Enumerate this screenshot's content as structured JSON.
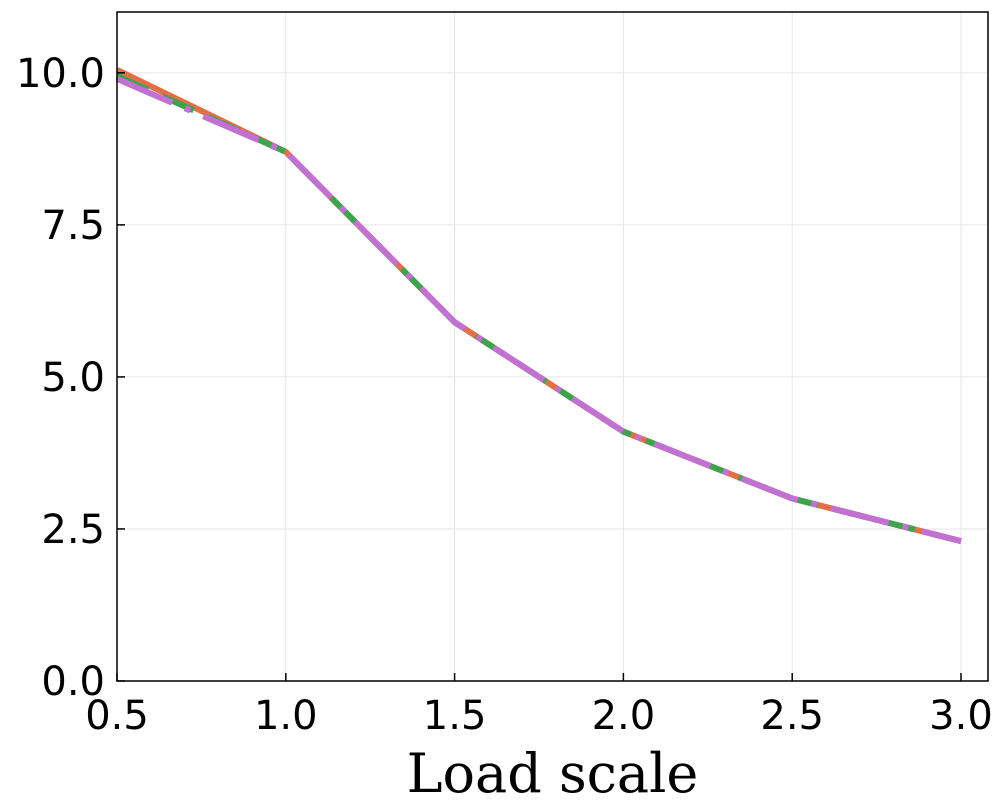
{
  "chart_data": {
    "type": "line",
    "title": "",
    "xlabel": "Load scale",
    "ylabel": "",
    "x": [
      0.5,
      1.0,
      1.5,
      2.0,
      2.5,
      3.0
    ],
    "xlim": [
      0.5,
      3.08
    ],
    "ylim": [
      0,
      11
    ],
    "xticks": [
      0.5,
      1.0,
      1.5,
      2.0,
      2.5,
      3.0
    ],
    "xtick_labels": [
      "0.5",
      "1.0",
      "1.5",
      "2.0",
      "2.5",
      "3.0"
    ],
    "yticks": [
      0,
      2.5,
      5,
      7.5,
      10
    ],
    "ytick_labels": [
      "0.0",
      "2.5",
      "5.0",
      "7.5",
      "10.0"
    ],
    "grid": true,
    "legend": "none",
    "series": [
      {
        "color": "#e26f46",
        "dash": "solid",
        "values": [
          10.05,
          8.7,
          5.9,
          4.1,
          3.0,
          2.3
        ]
      },
      {
        "color": "#3da44d",
        "dash": "dashed",
        "values": [
          9.95,
          8.7,
          5.9,
          4.1,
          3.0,
          2.3
        ]
      },
      {
        "color": "#c271d2",
        "dash": "dashdot",
        "values": [
          9.9,
          8.7,
          5.9,
          4.1,
          3.0,
          2.3
        ]
      }
    ]
  }
}
